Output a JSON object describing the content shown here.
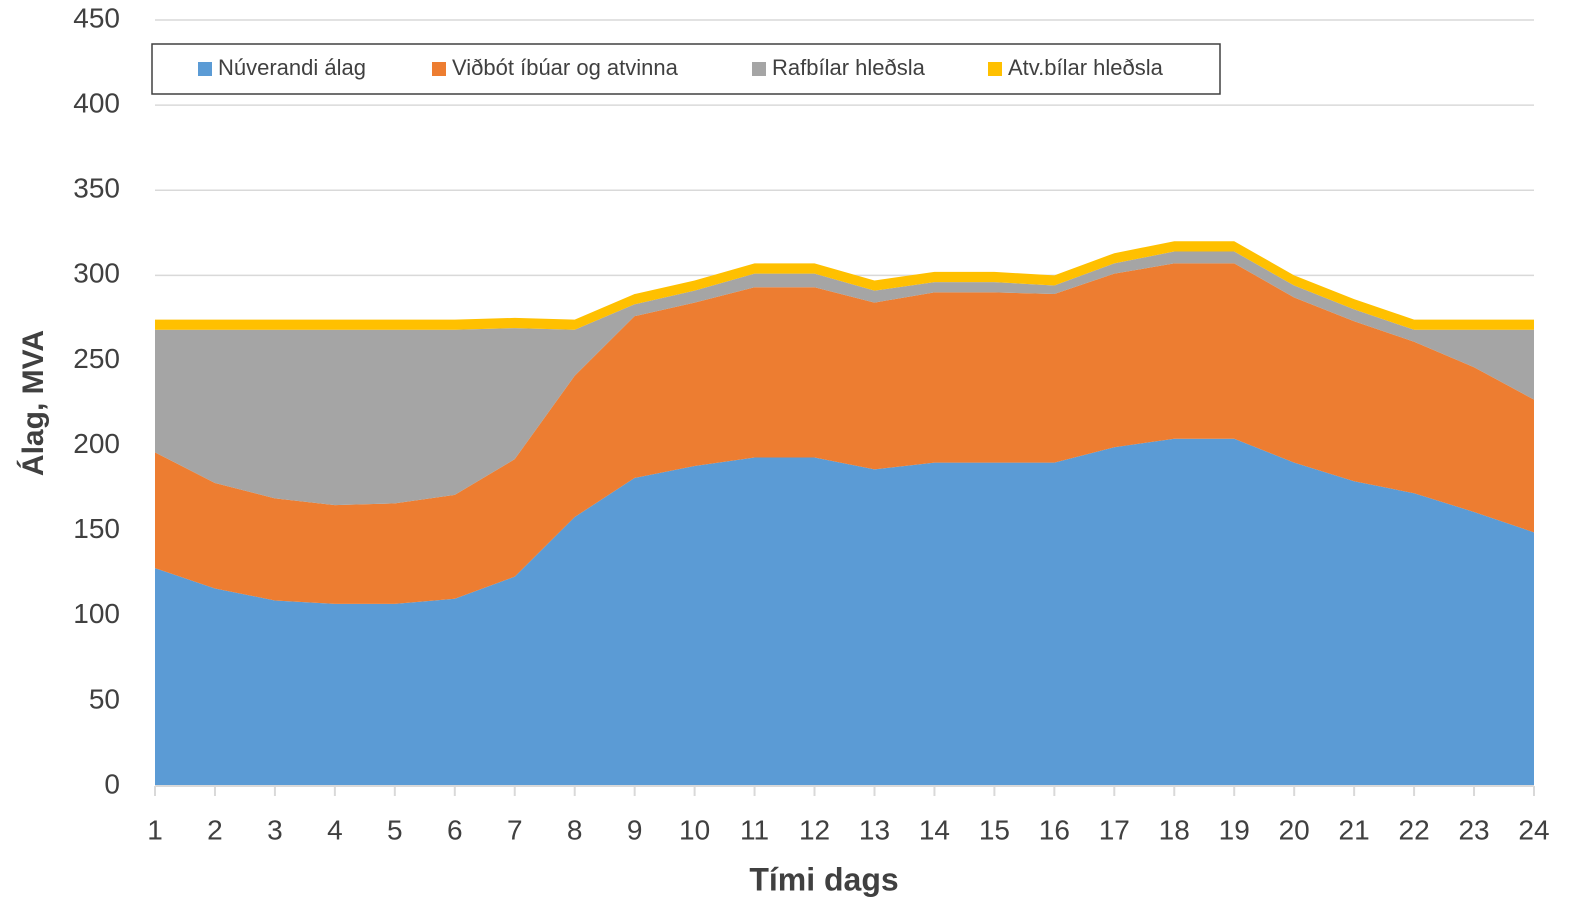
{
  "chart_data": {
    "type": "stacked_area",
    "ylabel": "Álag, MVA",
    "xlabel": "Tími dags",
    "categories": [
      1,
      2,
      3,
      4,
      5,
      6,
      7,
      8,
      9,
      10,
      11,
      12,
      13,
      14,
      15,
      16,
      17,
      18,
      19,
      20,
      21,
      22,
      23,
      24
    ],
    "series": [
      {
        "name": "Núverandi álag",
        "color": "#5b9bd5",
        "values": [
          128,
          116,
          109,
          107,
          107,
          110,
          123,
          158,
          181,
          188,
          193,
          193,
          186,
          190,
          190,
          190,
          199,
          204,
          204,
          190,
          179,
          172,
          161,
          149
        ]
      },
      {
        "name": "Viðbót íbúar og atvinna",
        "color": "#ed7d31",
        "values": [
          68,
          62,
          60,
          58,
          59,
          61,
          69,
          83,
          95,
          96,
          100,
          100,
          98,
          100,
          100,
          99,
          102,
          103,
          103,
          97,
          94,
          89,
          85,
          78
        ]
      },
      {
        "name": "Rafbílar hleðsla",
        "color": "#a5a5a5",
        "values": [
          72,
          90,
          99,
          103,
          102,
          97,
          77,
          27,
          7,
          7,
          8,
          8,
          7,
          6,
          6,
          5,
          6,
          7,
          7,
          7,
          7,
          7,
          22,
          41
        ]
      },
      {
        "name": "Atv.bílar hleðsla",
        "color": "#ffc000",
        "values": [
          6,
          6,
          6,
          6,
          6,
          6,
          6,
          6,
          6,
          6,
          6,
          6,
          6,
          6,
          6,
          6,
          6,
          6,
          6,
          6,
          6,
          6,
          6,
          6
        ]
      }
    ],
    "ylim": [
      0,
      450
    ],
    "yticks": [
      0,
      50,
      100,
      150,
      200,
      250,
      300,
      350,
      400,
      450
    ],
    "grid": true,
    "legend": "top"
  }
}
